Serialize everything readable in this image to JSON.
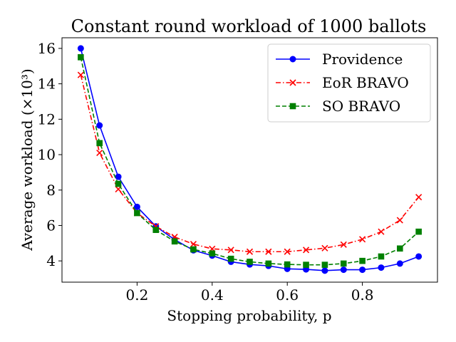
{
  "chart_data": {
    "type": "line",
    "title": "Constant round workload of 1000 ballots",
    "xlabel": "Stopping probability, p",
    "ylabel": "Average workload (×10³)",
    "xlim": [
      0.0,
      1.0
    ],
    "ylim": [
      2.8,
      16.6
    ],
    "xticks": [
      0.2,
      0.4,
      0.6,
      0.8
    ],
    "xtick_labels": [
      "0.2",
      "0.4",
      "0.6",
      "0.8"
    ],
    "yticks": [
      4,
      6,
      8,
      10,
      12,
      14,
      16
    ],
    "ytick_labels": [
      "4",
      "6",
      "8",
      "10",
      "12",
      "14",
      "16"
    ],
    "grid": false,
    "legend_position": "top-right",
    "x": [
      0.05,
      0.1,
      0.15,
      0.2,
      0.25,
      0.3,
      0.35,
      0.4,
      0.45,
      0.5,
      0.55,
      0.6,
      0.65,
      0.7,
      0.75,
      0.8,
      0.85,
      0.9,
      0.95
    ],
    "series": [
      {
        "name": "Providence",
        "color": "#0000ff",
        "marker": "circle",
        "line_style": "solid",
        "values": [
          16.0,
          11.65,
          8.75,
          7.05,
          5.95,
          5.2,
          4.6,
          4.3,
          3.95,
          3.8,
          3.72,
          3.55,
          3.52,
          3.45,
          3.5,
          3.5,
          3.62,
          3.85,
          4.25
        ]
      },
      {
        "name": "EoR BRAVO",
        "color": "#ff0000",
        "marker": "x",
        "line_style": "dashdot",
        "values": [
          14.5,
          10.1,
          8.05,
          6.7,
          5.95,
          5.35,
          4.95,
          4.68,
          4.62,
          4.52,
          4.52,
          4.52,
          4.62,
          4.72,
          4.92,
          5.22,
          5.65,
          6.3,
          7.6
        ]
      },
      {
        "name": "SO BRAVO",
        "color": "#008000",
        "marker": "square",
        "line_style": "dashed",
        "values": [
          15.5,
          10.65,
          8.35,
          6.7,
          5.75,
          5.1,
          4.65,
          4.42,
          4.12,
          3.95,
          3.85,
          3.8,
          3.78,
          3.78,
          3.85,
          4.0,
          4.25,
          4.7,
          5.65
        ]
      }
    ]
  }
}
